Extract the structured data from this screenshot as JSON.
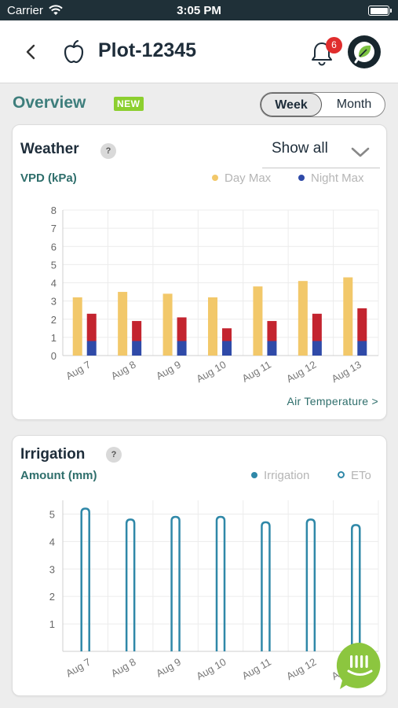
{
  "status_bar": {
    "carrier": "Carrier",
    "time": "3:05 PM"
  },
  "nav": {
    "title": "Plot-12345",
    "notification_count": "6",
    "icons": {
      "back": "chevron-left-icon",
      "plot": "apple-icon",
      "notifications": "bell-icon",
      "profile": "leaf-logo-icon"
    }
  },
  "overview": {
    "title": "Overview",
    "new_badge": "NEW",
    "range_options": {
      "week": "Week",
      "month": "Month"
    },
    "selected_range": "Week"
  },
  "weather": {
    "title": "Weather",
    "help": "?",
    "dropdown_value": "Show all",
    "metric_label": "VPD (kPa)",
    "legend": {
      "day": "Day Max",
      "night": "Night Max"
    },
    "link": "Air Temperature >"
  },
  "irrigation": {
    "title": "Irrigation",
    "help": "?",
    "metric_label": "Amount (mm)",
    "legend": {
      "irrigation": "Irrigation",
      "eto": "ETo"
    }
  },
  "colors": {
    "accent": "#3e7e7c",
    "day_max": "#f2c86a",
    "night_red": "#c3242f",
    "night_blue": "#2f4aa8",
    "irrigation": "#2f88a8",
    "new_badge": "#8ccf2f",
    "notification_badge": "#e02d2d"
  },
  "chart_data": [
    {
      "type": "bar",
      "ylabel": "VPD (kPa)",
      "categories": [
        "Aug 7",
        "Aug 8",
        "Aug 9",
        "Aug 10",
        "Aug 11",
        "Aug 12",
        "Aug 13"
      ],
      "ylim": [
        0,
        8
      ],
      "yticks": [
        0,
        1,
        2,
        3,
        4,
        5,
        6,
        7,
        8
      ],
      "grid": true,
      "legend_position": "top-right",
      "series": [
        {
          "name": "Day Max",
          "values": [
            3.2,
            3.5,
            3.4,
            3.2,
            3.8,
            4.1,
            4.3
          ]
        },
        {
          "name": "Night Max",
          "values": [
            2.3,
            1.9,
            2.1,
            1.5,
            1.9,
            2.3,
            2.6
          ]
        }
      ]
    },
    {
      "type": "bar",
      "ylabel": "Amount (mm)",
      "categories": [
        "Aug 7",
        "Aug 8",
        "Aug 9",
        "Aug 10",
        "Aug 11",
        "Aug 12",
        "Aug 13"
      ],
      "ylim": [
        0,
        5.5
      ],
      "yticks": [
        1,
        2,
        3,
        4,
        5
      ],
      "grid": true,
      "legend_position": "top-right",
      "series": [
        {
          "name": "ETo",
          "values": [
            5.2,
            4.8,
            4.9,
            4.9,
            4.7,
            4.8,
            4.6
          ]
        }
      ]
    }
  ]
}
